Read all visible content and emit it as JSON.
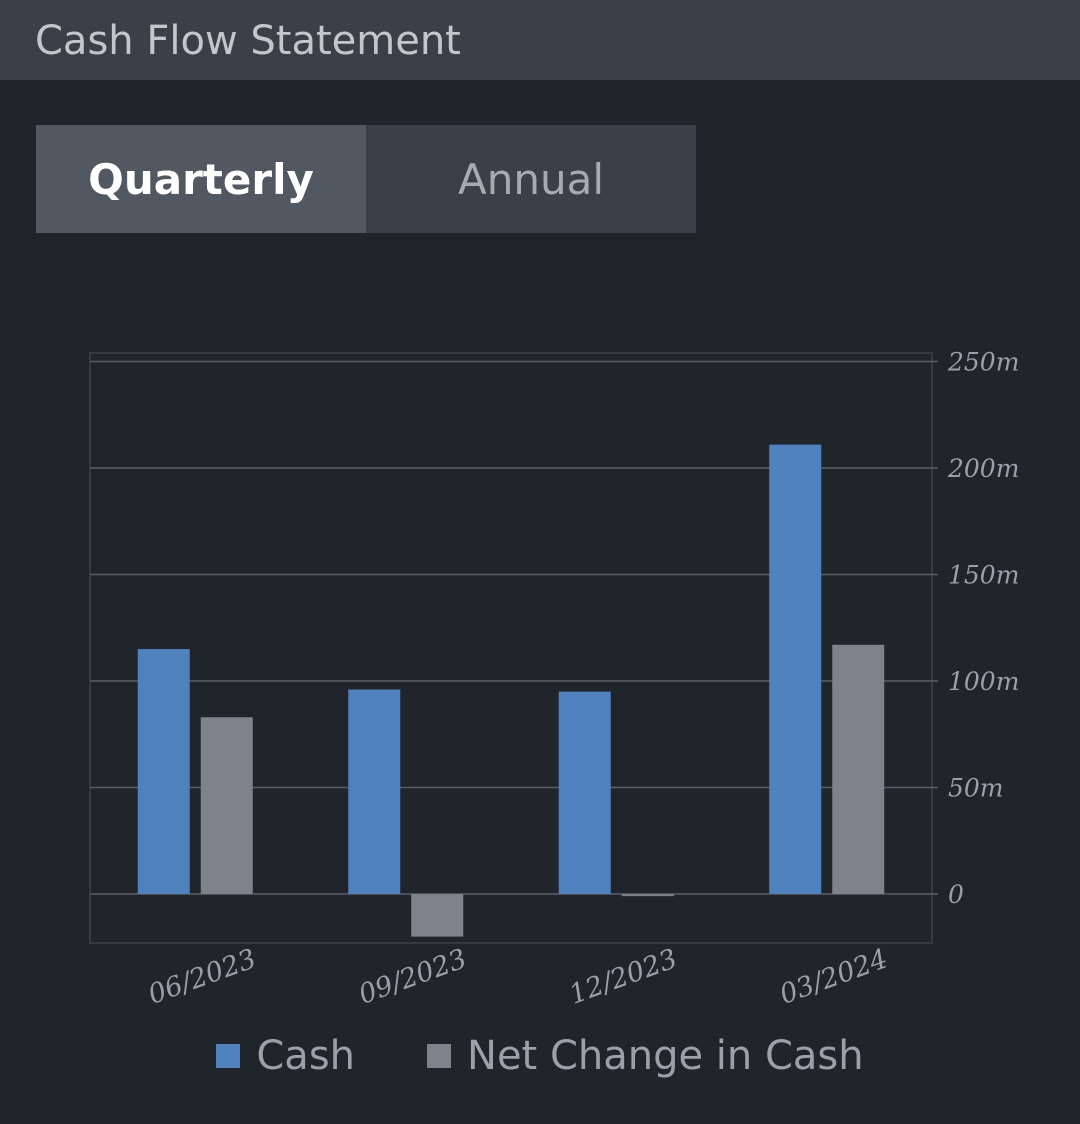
{
  "header": {
    "title": "Cash Flow Statement"
  },
  "tabs": [
    {
      "label": "Quarterly",
      "active": true
    },
    {
      "label": "Annual",
      "active": false
    }
  ],
  "colors": {
    "cash": "#4f81bd",
    "net_change": "#7c838b",
    "grid": "#5a5f66"
  },
  "chart_data": {
    "type": "bar",
    "categories": [
      "06/2023",
      "09/2023",
      "12/2023",
      "03/2024"
    ],
    "series": [
      {
        "name": "Cash",
        "values": [
          115,
          96,
          95,
          211
        ]
      },
      {
        "name": "Net Change in Cash",
        "values": [
          83,
          -20,
          -1,
          117
        ]
      }
    ],
    "y_ticks": [
      0,
      50,
      100,
      150,
      200,
      250
    ],
    "y_tick_labels": [
      "0",
      "50m",
      "100m",
      "150m",
      "200m",
      "250m"
    ],
    "ylim": [
      -23,
      254
    ],
    "y_axis_position": "right",
    "grid": true,
    "legend_position": "bottom"
  }
}
